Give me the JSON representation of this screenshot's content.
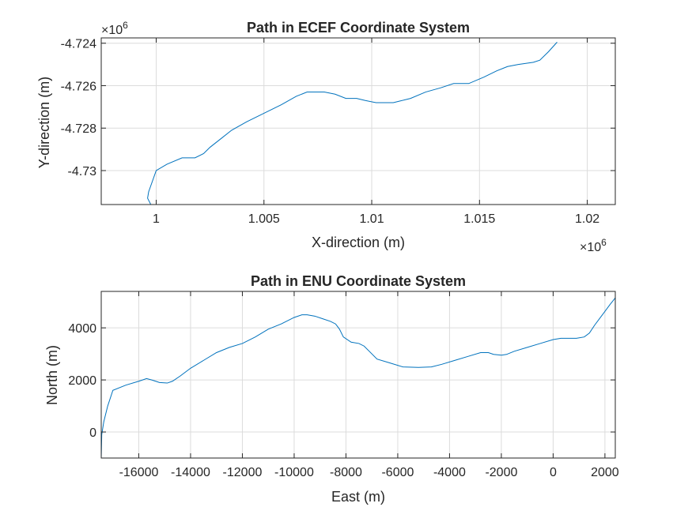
{
  "chart_data": [
    {
      "type": "line",
      "title": "Path in ECEF Coordinate System",
      "xlabel": "X-direction (m)",
      "ylabel": "Y-direction (m)",
      "x_exponent": "×10^6",
      "x_exponent_base": "×10",
      "x_exponent_power": "6",
      "y_exponent_base": "×10",
      "y_exponent_power": "6",
      "xlim": [
        0.99745,
        1.0213
      ],
      "ylim": [
        -4.7316,
        -4.72375
      ],
      "xticks": [
        1,
        1.005,
        1.01,
        1.015,
        1.02
      ],
      "xtick_labels": [
        "1",
        "1.005",
        "1.01",
        "1.015",
        "1.02"
      ],
      "yticks": [
        -4.724,
        -4.726,
        -4.728,
        -4.73
      ],
      "ytick_labels": [
        "-4.724",
        "-4.726",
        "-4.728",
        "-4.73"
      ],
      "grid": true,
      "line_color": "#0072BD",
      "series": [
        {
          "x": [
            0.99975,
            0.9996,
            0.99965,
            1.0,
            1.0005,
            1.0012,
            1.0018,
            1.0022,
            1.0025,
            1.003,
            1.0035,
            1.0042,
            1.005,
            1.0058,
            1.0065,
            1.007,
            1.0078,
            1.0083,
            1.0088,
            1.0093,
            1.0097,
            1.0102,
            1.011,
            1.0118,
            1.0125,
            1.0132,
            1.0138,
            1.0145,
            1.0152,
            1.0158,
            1.0163,
            1.0168,
            1.0175,
            1.0178,
            1.0182,
            1.0186
          ],
          "y": [
            -4.7316,
            -4.7313,
            -4.731,
            -4.73,
            -4.7297,
            -4.7294,
            -4.7294,
            -4.7292,
            -4.7289,
            -4.7285,
            -4.7281,
            -4.7277,
            -4.7273,
            -4.7269,
            -4.7265,
            -4.7263,
            -4.7263,
            -4.7264,
            -4.7266,
            -4.7266,
            -4.7267,
            -4.7268,
            -4.7268,
            -4.7266,
            -4.7263,
            -4.7261,
            -4.7259,
            -4.7259,
            -4.7256,
            -4.7253,
            -4.7251,
            -4.725,
            -4.7249,
            -4.7248,
            -4.7244,
            -4.72395
          ]
        }
      ]
    },
    {
      "type": "line",
      "title": "Path in ENU Coordinate System",
      "xlabel": "East (m)",
      "ylabel": "North (m)",
      "xlim": [
        -17450,
        2400
      ],
      "ylim": [
        -1000,
        5400
      ],
      "xticks": [
        -16000,
        -14000,
        -12000,
        -10000,
        -8000,
        -6000,
        -4000,
        -2000,
        0,
        2000
      ],
      "xtick_labels": [
        "-16000",
        "-14000",
        "-12000",
        "-10000",
        "-8000",
        "-6000",
        "-4000",
        "-2000",
        "0",
        "2000"
      ],
      "yticks": [
        0,
        2000,
        4000
      ],
      "ytick_labels": [
        "0",
        "2000",
        "4000"
      ],
      "grid": true,
      "line_color": "#0072BD",
      "series": [
        {
          "x": [
            -17450,
            -17430,
            -17350,
            -17200,
            -17000,
            -16500,
            -16000,
            -15700,
            -15500,
            -15200,
            -14900,
            -14700,
            -14400,
            -14000,
            -13500,
            -13000,
            -12500,
            -12000,
            -11500,
            -11000,
            -10500,
            -10000,
            -9700,
            -9500,
            -9200,
            -8900,
            -8600,
            -8400,
            -8250,
            -8100,
            -7800,
            -7500,
            -7300,
            -7100,
            -6800,
            -6300,
            -5800,
            -5200,
            -4700,
            -4300,
            -3800,
            -3300,
            -2800,
            -2500,
            -2300,
            -2000,
            -1800,
            -1500,
            -1000,
            -500,
            0,
            300,
            600,
            900,
            1200,
            1400,
            1600,
            1900,
            2200,
            2400
          ],
          "y": [
            -1000,
            -100,
            400,
            1000,
            1600,
            1800,
            1950,
            2050,
            2000,
            1900,
            1880,
            1950,
            2150,
            2450,
            2750,
            3050,
            3250,
            3400,
            3650,
            3950,
            4150,
            4400,
            4500,
            4500,
            4450,
            4350,
            4250,
            4150,
            3950,
            3650,
            3450,
            3400,
            3300,
            3100,
            2800,
            2650,
            2500,
            2480,
            2500,
            2600,
            2750,
            2900,
            3050,
            3050,
            2980,
            2950,
            2980,
            3100,
            3250,
            3400,
            3550,
            3600,
            3600,
            3600,
            3650,
            3800,
            4100,
            4500,
            4900,
            5150
          ]
        }
      ]
    }
  ]
}
